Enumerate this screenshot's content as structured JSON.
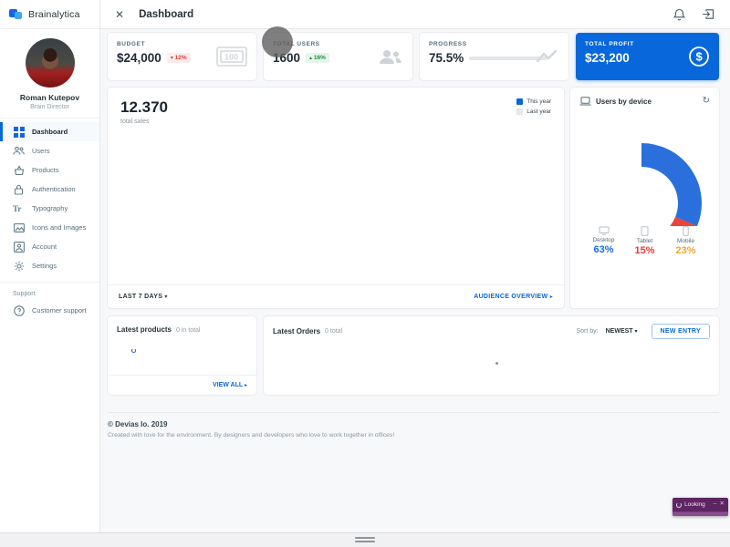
{
  "app": {
    "brand": "Brainalytica"
  },
  "topbar": {
    "title": "Dashboard",
    "close_glyph": "✕"
  },
  "sidebar": {
    "user": {
      "name": "Roman Kutepov",
      "role": "Brain Director"
    },
    "items": [
      {
        "label": "Dashboard"
      },
      {
        "label": "Users"
      },
      {
        "label": "Products"
      },
      {
        "label": "Authentication"
      },
      {
        "label": "Typography"
      },
      {
        "label": "Icons and Images"
      },
      {
        "label": "Account"
      },
      {
        "label": "Settings"
      }
    ],
    "support": {
      "title": "Support",
      "item": "Customer support"
    }
  },
  "stats": [
    {
      "label": "BUDGET",
      "value": "$24,000",
      "arrow": "▾",
      "delta": "12%"
    },
    {
      "label": "TOTAL USERS",
      "value": "1600",
      "arrow": "▴",
      "delta": "16%"
    },
    {
      "label": "PROGRESS",
      "value": "75.5%",
      "progress": "75.5%"
    },
    {
      "label": "TOTAL PROFIT",
      "value": "$23,200"
    }
  ],
  "sales": {
    "total": "12.370",
    "subtitle": "total sales",
    "legend": [
      {
        "label": "This year",
        "color": "#0767DB"
      },
      {
        "label": "Last year",
        "color": "#e8eaed"
      }
    ],
    "range_button": "LAST 7 DAYS",
    "range_caret": "▾",
    "overview_button": "AUDIENCE OVERVIEW",
    "overview_caret": "▸"
  },
  "users_by_device": {
    "title": "Users by device",
    "refresh_glyph": "↻",
    "stats": [
      {
        "label": "Desktop",
        "pct": "63%",
        "color": "#1a6ae0"
      },
      {
        "label": "Tablet",
        "pct": "15%",
        "color": "#e53935"
      },
      {
        "label": "Mobile",
        "pct": "23%",
        "color": "#f4a62a"
      }
    ]
  },
  "chart_data": [
    {
      "type": "line",
      "title": "12.370 total sales",
      "series": [
        {
          "name": "This year",
          "values": []
        },
        {
          "name": "Last year",
          "values": []
        }
      ],
      "note": "chart body not rendered in this frame (blank plot area)"
    },
    {
      "type": "pie",
      "title": "Users by device",
      "categories": [
        "Desktop",
        "Tablet",
        "Mobile"
      ],
      "values": [
        63,
        15,
        23
      ],
      "colors": [
        "#2a6fdb",
        "#e8453c",
        "#fcb525"
      ],
      "render_state": {
        "partial_sweep_degrees": [
          [
            -90,
            22
          ],
          [
            22,
            40
          ],
          [
            40,
            62
          ]
        ],
        "center": [
          78,
          105
        ],
        "radius": 53,
        "thickness": 26
      }
    }
  ],
  "latest_products": {
    "title": "Latest products",
    "count": "0 in total",
    "view_all": "VIEW ALL",
    "caret": "▸"
  },
  "latest_orders": {
    "title": "Latest Orders",
    "count": "0 total",
    "sort_label": "Sort by:",
    "sort_value": "NEWEST",
    "sort_caret": "▾",
    "new_entry": "NEW ENTRY"
  },
  "footer": {
    "copyright": "© Devias Io. 2019",
    "tagline": "Created with love for the environment. By designers and developers who love to work together in offices!"
  },
  "toast": {
    "label": "Looking",
    "minimize_glyph": "–",
    "close_glyph": "✕"
  },
  "colors": {
    "primary": "#0767DB",
    "negative": "#e53935",
    "positive": "#1e8e3e",
    "toast_bg": "#5e2563"
  }
}
